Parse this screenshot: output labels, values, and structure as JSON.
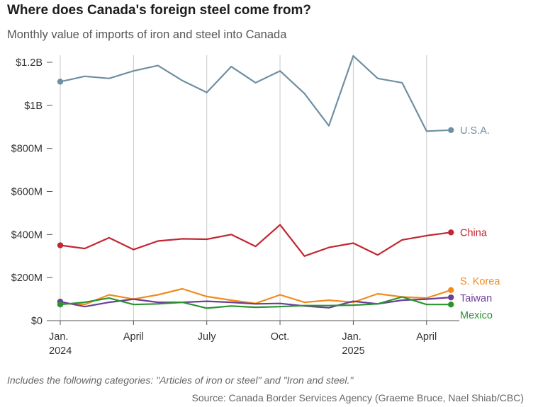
{
  "title": "Where does Canada's foreign steel come from?",
  "subtitle": "Monthly value of imports of iron and steel into Canada",
  "note": "Includes the following categories: \"Articles of iron or steel\" and \"Iron and steel.\"",
  "source": "Source: Canada Border Services Agency (Graeme Bruce, Nael Shiab/CBC)",
  "chart_data": {
    "type": "line",
    "ylim": [
      0,
      1200
    ],
    "y_unit": "millions CAD",
    "grid": "vertical",
    "legend": "right, end-of-line labels",
    "y_ticks": [
      {
        "value": 0,
        "label": "$0"
      },
      {
        "value": 200,
        "label": "$200M"
      },
      {
        "value": 400,
        "label": "$400M"
      },
      {
        "value": 600,
        "label": "$600M"
      },
      {
        "value": 800,
        "label": "$800M"
      },
      {
        "value": 1000,
        "label": "$1B"
      },
      {
        "value": 1200,
        "label": "$1.2B"
      }
    ],
    "x": [
      "2024-01",
      "2024-02",
      "2024-03",
      "2024-04",
      "2024-05",
      "2024-06",
      "2024-07",
      "2024-08",
      "2024-09",
      "2024-10",
      "2024-11",
      "2024-12",
      "2025-01",
      "2025-02",
      "2025-03",
      "2025-04",
      "2025-05"
    ],
    "x_ticks": [
      {
        "month": "2024-01",
        "line1": "Jan.",
        "line2": "2024"
      },
      {
        "month": "2024-04",
        "line1": "April",
        "line2": ""
      },
      {
        "month": "2024-07",
        "line1": "July",
        "line2": ""
      },
      {
        "month": "2024-10",
        "line1": "Oct.",
        "line2": ""
      },
      {
        "month": "2025-01",
        "line1": "Jan.",
        "line2": "2025"
      },
      {
        "month": "2025-04",
        "line1": "April",
        "line2": ""
      }
    ],
    "series": [
      {
        "name": "U.S.A.",
        "color": "#6f8fa3",
        "values": [
          1110,
          1135,
          1125,
          1160,
          1185,
          1115,
          1060,
          1180,
          1105,
          1160,
          1055,
          905,
          1230,
          1125,
          1105,
          880,
          885
        ]
      },
      {
        "name": "China",
        "color": "#c32630",
        "values": [
          350,
          335,
          385,
          330,
          370,
          380,
          378,
          400,
          345,
          445,
          300,
          340,
          360,
          305,
          375,
          395,
          410
        ]
      },
      {
        "name": "S. Korea",
        "color": "#f28c1c",
        "values": [
          80,
          75,
          120,
          100,
          120,
          148,
          112,
          95,
          80,
          120,
          85,
          95,
          85,
          125,
          110,
          105,
          142
        ]
      },
      {
        "name": "Taiwan",
        "color": "#6b3f98",
        "values": [
          88,
          65,
          85,
          100,
          85,
          85,
          90,
          85,
          78,
          80,
          68,
          60,
          90,
          78,
          95,
          100,
          108
        ]
      },
      {
        "name": "Mexico",
        "color": "#2a9430",
        "values": [
          75,
          85,
          105,
          75,
          78,
          85,
          58,
          68,
          62,
          65,
          70,
          70,
          72,
          78,
          110,
          75,
          75
        ]
      }
    ]
  }
}
